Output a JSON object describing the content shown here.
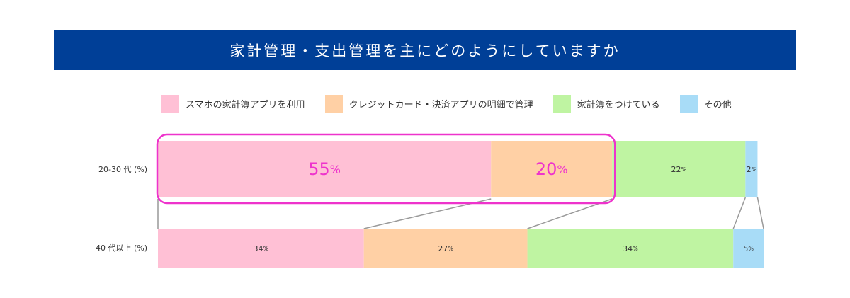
{
  "header": {
    "title": "家計管理・支出管理を主にどのようにしていますか"
  },
  "chart_data": {
    "type": "stacked-bar-horizontal",
    "title": "家計管理・支出管理を主にどのようにしていますか",
    "unit": "%",
    "categories": [
      "20-30 代 (%)",
      "40 代以上 (%)"
    ],
    "series": [
      {
        "name": "スマホの家計簿アプリを利用",
        "color": "#ffc0d5",
        "values": [
          55,
          34
        ]
      },
      {
        "name": "クレジットカード・決済アプリの明細で管理",
        "color": "#ffd0a5",
        "values": [
          20,
          27
        ]
      },
      {
        "name": "家計簿をつけている",
        "color": "#bff4a2",
        "values": [
          22,
          34
        ]
      },
      {
        "name": "その他",
        "color": "#a8dcf7",
        "values": [
          2,
          5
        ]
      }
    ],
    "data_labels": [
      [
        "55%",
        "20%",
        "22%",
        "2%"
      ],
      [
        "34%",
        "27%",
        "34%",
        "5%"
      ]
    ],
    "highlight": {
      "row": 0,
      "series": [
        0,
        1
      ],
      "color": "#ee33cc"
    },
    "legend_position": "top",
    "grid": false
  }
}
